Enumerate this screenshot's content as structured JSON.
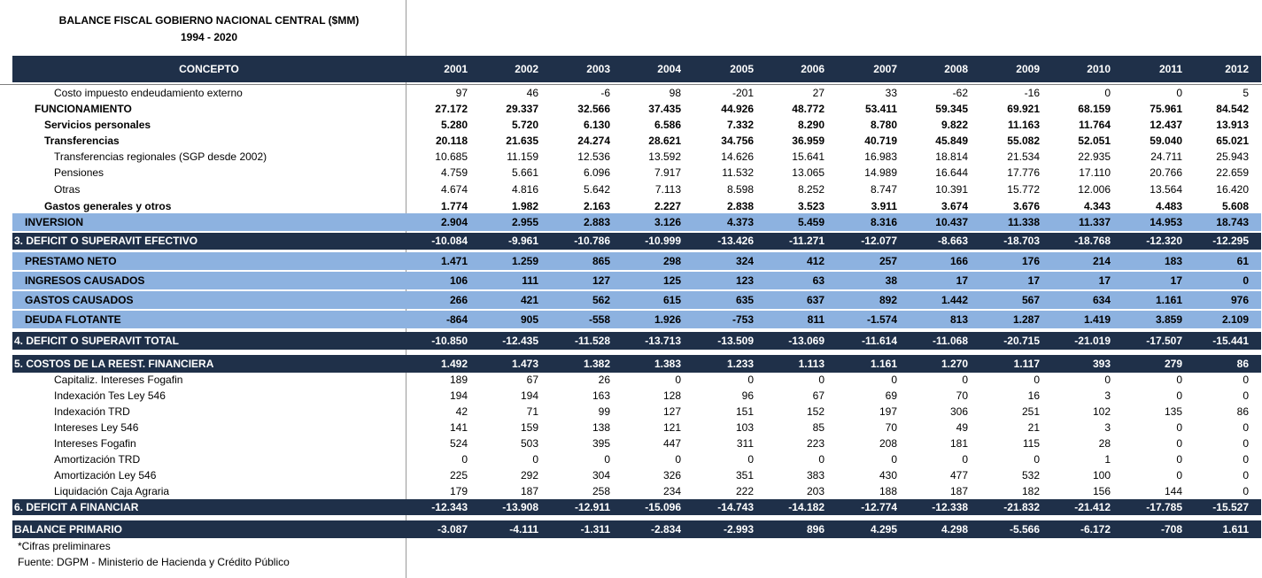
{
  "title": "BALANCE FISCAL GOBIERNO NACIONAL CENTRAL ($MM)",
  "subtitle": "1994 - 2020",
  "header": {
    "concept": "CONCEPTO",
    "years": [
      "2001",
      "2002",
      "2003",
      "2004",
      "2005",
      "2006",
      "2007",
      "2008",
      "2009",
      "2010",
      "2011",
      "2012"
    ]
  },
  "rows": [
    {
      "label": "Costo impuesto endeudamiento externo",
      "values": [
        "97",
        "46",
        "-6",
        "98",
        "-201",
        "27",
        "33",
        "-62",
        "-16",
        "0",
        "0",
        "5"
      ]
    },
    {
      "label": "FUNCIONAMIENTO",
      "values": [
        "27.172",
        "29.337",
        "32.566",
        "37.435",
        "44.926",
        "48.772",
        "53.411",
        "59.345",
        "69.921",
        "68.159",
        "75.961",
        "84.542"
      ]
    },
    {
      "label": "Servicios personales",
      "values": [
        "5.280",
        "5.720",
        "6.130",
        "6.586",
        "7.332",
        "8.290",
        "8.780",
        "9.822",
        "11.163",
        "11.764",
        "12.437",
        "13.913"
      ]
    },
    {
      "label": "Transferencias",
      "values": [
        "20.118",
        "21.635",
        "24.274",
        "28.621",
        "34.756",
        "36.959",
        "40.719",
        "45.849",
        "55.082",
        "52.051",
        "59.040",
        "65.021"
      ]
    },
    {
      "label": "Transferencias regionales (SGP desde 2002)",
      "values": [
        "10.685",
        "11.159",
        "12.536",
        "13.592",
        "14.626",
        "15.641",
        "16.983",
        "18.814",
        "21.534",
        "22.935",
        "24.711",
        "25.943"
      ]
    },
    {
      "label": "Pensiones",
      "values": [
        "4.759",
        "5.661",
        "6.096",
        "7.917",
        "11.532",
        "13.065",
        "14.989",
        "16.644",
        "17.776",
        "17.110",
        "20.766",
        "22.659"
      ]
    },
    {
      "label": "Otras",
      "values": [
        "4.674",
        "4.816",
        "5.642",
        "7.113",
        "8.598",
        "8.252",
        "8.747",
        "10.391",
        "15.772",
        "12.006",
        "13.564",
        "16.420"
      ]
    },
    {
      "label": "Gastos generales y otros",
      "values": [
        "1.774",
        "1.982",
        "2.163",
        "2.227",
        "2.838",
        "3.523",
        "3.911",
        "3.674",
        "3.676",
        "4.343",
        "4.483",
        "5.608"
      ]
    },
    {
      "label": "INVERSION",
      "values": [
        "2.904",
        "2.955",
        "2.883",
        "3.126",
        "4.373",
        "5.459",
        "8.316",
        "10.437",
        "11.338",
        "11.337",
        "14.953",
        "18.743"
      ]
    },
    {
      "label": "3. DEFICIT O SUPERAVIT EFECTIVO",
      "values": [
        "-10.084",
        "-9.961",
        "-10.786",
        "-10.999",
        "-13.426",
        "-11.271",
        "-12.077",
        "-8.663",
        "-18.703",
        "-18.768",
        "-12.320",
        "-12.295"
      ]
    },
    {
      "label": "PRESTAMO NETO",
      "values": [
        "1.471",
        "1.259",
        "865",
        "298",
        "324",
        "412",
        "257",
        "166",
        "176",
        "214",
        "183",
        "61"
      ]
    },
    {
      "label": "INGRESOS CAUSADOS",
      "values": [
        "106",
        "111",
        "127",
        "125",
        "123",
        "63",
        "38",
        "17",
        "17",
        "17",
        "17",
        "0"
      ]
    },
    {
      "label": "GASTOS CAUSADOS",
      "values": [
        "266",
        "421",
        "562",
        "615",
        "635",
        "637",
        "892",
        "1.442",
        "567",
        "634",
        "1.161",
        "976"
      ]
    },
    {
      "label": "DEUDA FLOTANTE",
      "values": [
        "-864",
        "905",
        "-558",
        "1.926",
        "-753",
        "811",
        "-1.574",
        "813",
        "1.287",
        "1.419",
        "3.859",
        "2.109"
      ]
    },
    {
      "label": "4. DEFICIT O SUPERAVIT TOTAL",
      "values": [
        "-10.850",
        "-12.435",
        "-11.528",
        "-13.713",
        "-13.509",
        "-13.069",
        "-11.614",
        "-11.068",
        "-20.715",
        "-21.019",
        "-17.507",
        "-15.441"
      ]
    },
    {
      "label": "5. COSTOS DE LA REEST. FINANCIERA",
      "values": [
        "1.492",
        "1.473",
        "1.382",
        "1.383",
        "1.233",
        "1.113",
        "1.161",
        "1.270",
        "1.117",
        "393",
        "279",
        "86"
      ]
    },
    {
      "label": "Capitaliz. Intereses Fogafin",
      "values": [
        "189",
        "67",
        "26",
        "0",
        "0",
        "0",
        "0",
        "0",
        "0",
        "0",
        "0",
        "0"
      ]
    },
    {
      "label": "Indexación Tes Ley 546",
      "values": [
        "194",
        "194",
        "163",
        "128",
        "96",
        "67",
        "69",
        "70",
        "16",
        "3",
        "0",
        "0"
      ]
    },
    {
      "label": "Indexación TRD",
      "values": [
        "42",
        "71",
        "99",
        "127",
        "151",
        "152",
        "197",
        "306",
        "251",
        "102",
        "135",
        "86"
      ]
    },
    {
      "label": "Intereses Ley 546",
      "values": [
        "141",
        "159",
        "138",
        "121",
        "103",
        "85",
        "70",
        "49",
        "21",
        "3",
        "0",
        "0"
      ]
    },
    {
      "label": "Intereses Fogafin",
      "values": [
        "524",
        "503",
        "395",
        "447",
        "311",
        "223",
        "208",
        "181",
        "115",
        "28",
        "0",
        "0"
      ]
    },
    {
      "label": "Amortización TRD",
      "values": [
        "0",
        "0",
        "0",
        "0",
        "0",
        "0",
        "0",
        "0",
        "0",
        "1",
        "0",
        "0"
      ]
    },
    {
      "label": "Amortización Ley 546",
      "values": [
        "225",
        "292",
        "304",
        "326",
        "351",
        "383",
        "430",
        "477",
        "532",
        "100",
        "0",
        "0"
      ]
    },
    {
      "label": "Liquidación Caja Agraria",
      "values": [
        "179",
        "187",
        "258",
        "234",
        "222",
        "203",
        "188",
        "187",
        "182",
        "156",
        "144",
        "0"
      ]
    },
    {
      "label": "6. DEFICIT A FINANCIAR",
      "values": [
        "-12.343",
        "-13.908",
        "-12.911",
        "-15.096",
        "-14.743",
        "-14.182",
        "-12.774",
        "-12.338",
        "-21.832",
        "-21.412",
        "-17.785",
        "-15.527"
      ]
    },
    {
      "label": "BALANCE PRIMARIO",
      "values": [
        "-3.087",
        "-4.111",
        "-1.311",
        "-2.834",
        "-2.993",
        "896",
        "4.295",
        "4.298",
        "-5.566",
        "-6.172",
        "-708",
        "1.611"
      ]
    }
  ],
  "notes": {
    "preliminary": "*Cifras preliminares",
    "source": "Fuente: DGPM - Ministerio de Hacienda y Crédito Público"
  },
  "colors": {
    "dark_band": "#1f3049",
    "light_band": "#8db2e0"
  }
}
